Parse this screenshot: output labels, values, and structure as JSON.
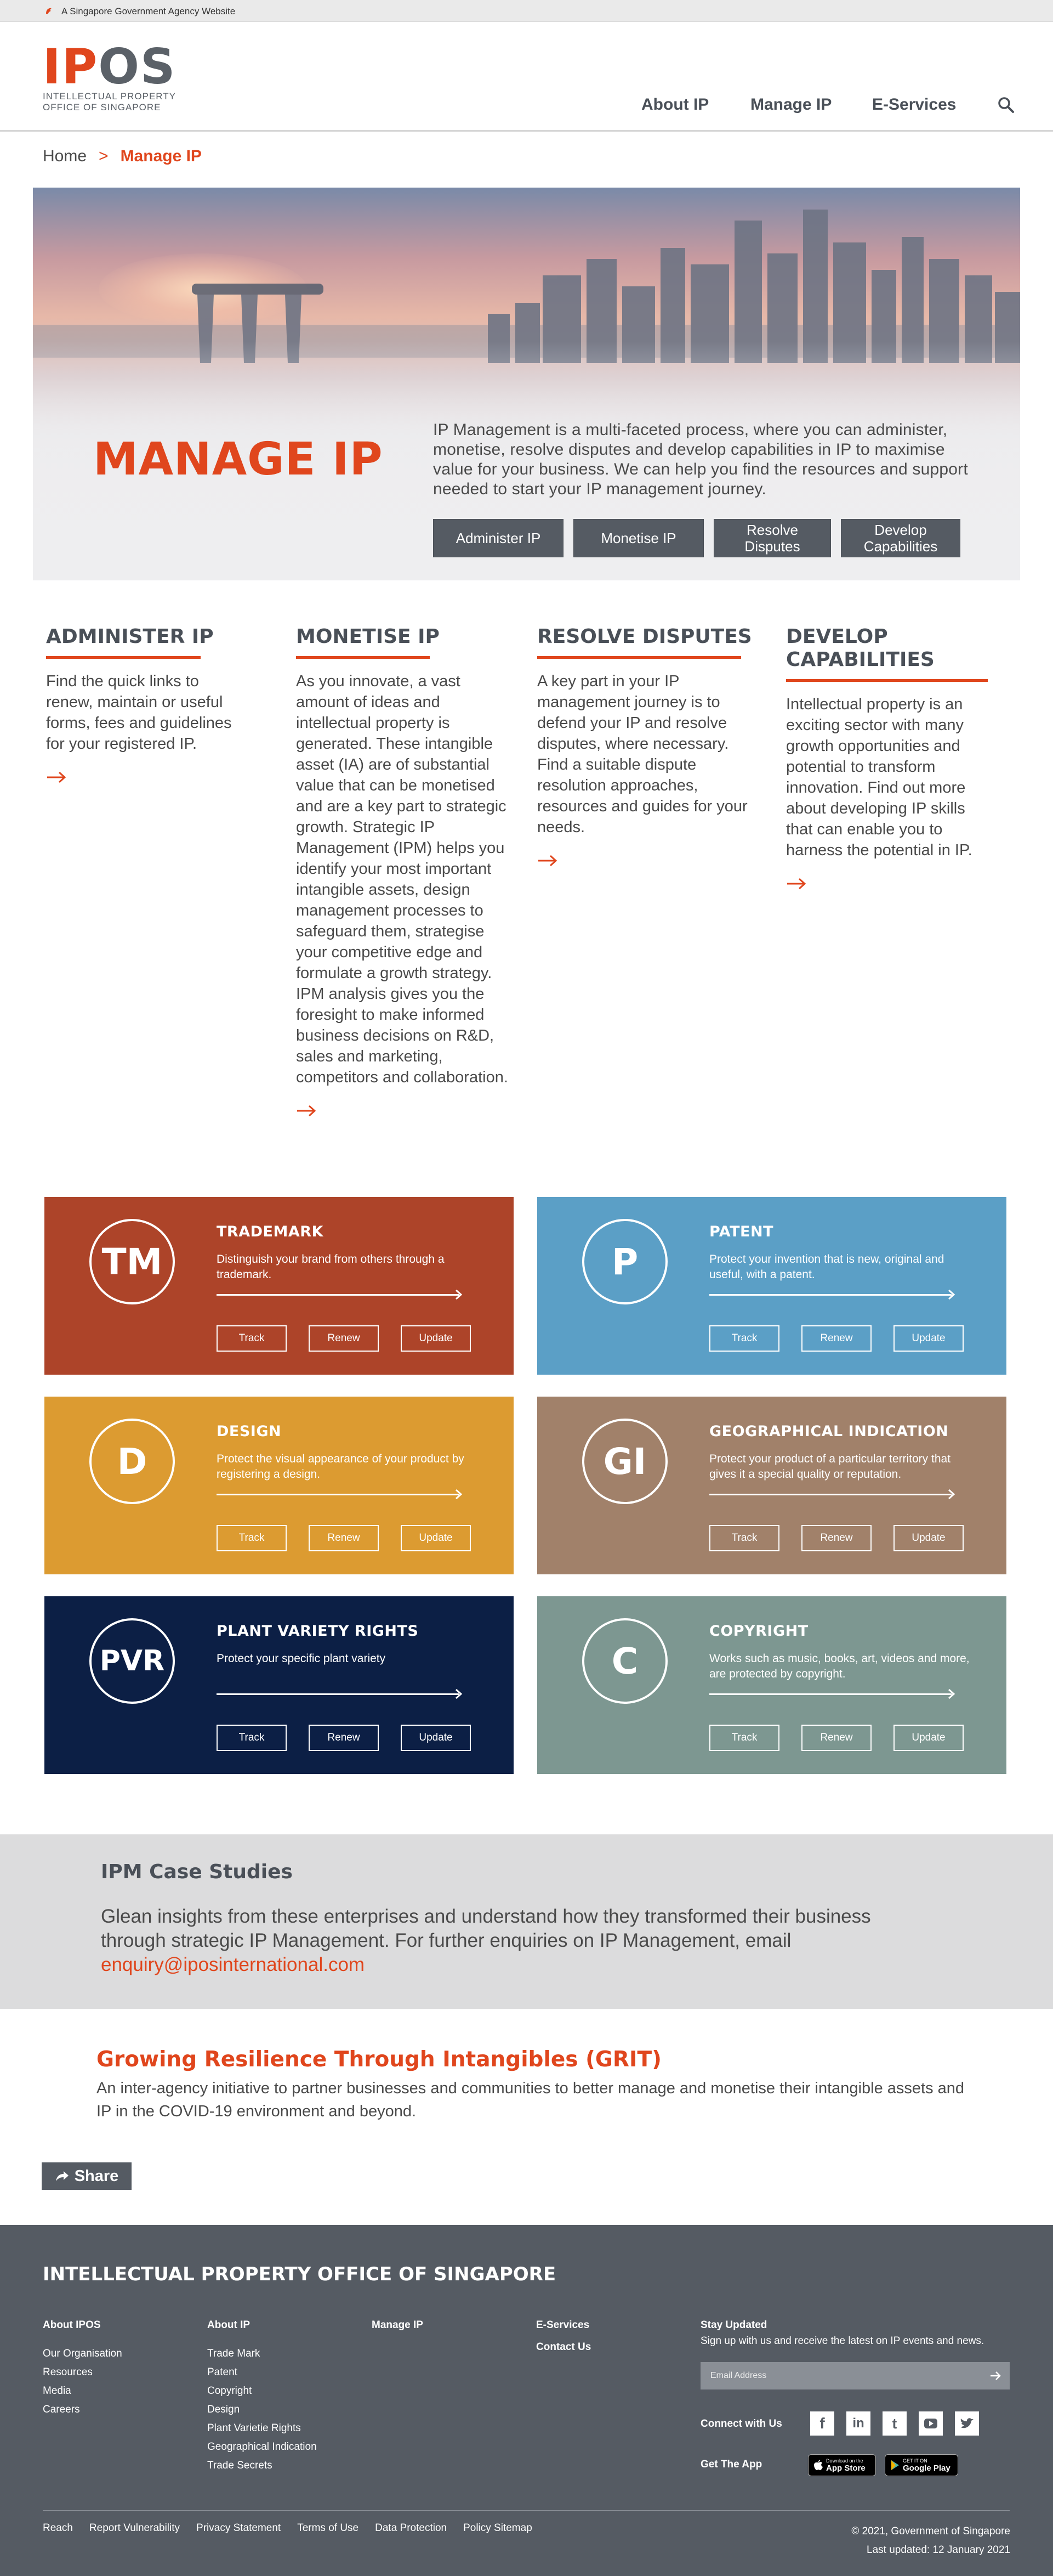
{
  "gov_banner": {
    "text": "A Singapore Government Agency Website"
  },
  "logo": {
    "ip": "IP",
    "os": "OS",
    "line1": "INTELLECTUAL PROPERTY",
    "line2": "OFFICE OF SINGAPORE"
  },
  "nav": {
    "items": [
      "About IP",
      "Manage IP",
      "E-Services"
    ],
    "search_icon": "search-icon"
  },
  "breadcrumb": {
    "home": "Home",
    "separator": ">",
    "current": "Manage IP"
  },
  "hero": {
    "title": "MANAGE IP",
    "description": "IP Management is a multi-faceted process, where you can administer, monetise, resolve disputes and develop capabilities in IP to maximise value for your business. We can help you find the resources and support needed to start your IP management journey.",
    "buttons": [
      "Administer IP",
      "Monetise IP",
      "Resolve Disputes",
      "Develop Capabilities"
    ]
  },
  "sections": [
    {
      "title": "ADMINISTER IP",
      "text": "Find the quick links to renew, maintain or useful forms, fees and guidelines for your registered IP."
    },
    {
      "title": "MONETISE IP",
      "text": "As you innovate, a vast amount of ideas and intellectual property is generated. These intangible asset (IA) are of substantial value that can be monetised and are a key part to strategic growth. Strategic IP Management (IPM) helps you identify your most important intangible assets, design management processes to safeguard them, strategise your competitive edge and formulate a growth strategy. IPM analysis gives you the foresight to make informed business decisions on R&D, sales and marketing, competitors and collaboration."
    },
    {
      "title": "RESOLVE DISPUTES",
      "text": "A key part in your IP management journey is to defend your IP and resolve disputes, where necessary. Find a suitable dispute resolution approaches, resources and guides for your needs."
    },
    {
      "title": "DEVELOP CAPABILITIES",
      "text": "Intellectual property is an exciting sector with many growth opportunities and potential  to transform innovation. Find out more about developing IP skills that can enable you to harness the potential in IP."
    }
  ],
  "ip_types": [
    {
      "abbr": "TM",
      "name": "TRADEMARK",
      "desc": "Distinguish your brand from others through a trademark.",
      "color": "#ad4429"
    },
    {
      "abbr": "P",
      "name": "PATENT",
      "desc": "Protect your invention that is new, original and useful, with a patent.",
      "color": "#5b9fc6"
    },
    {
      "abbr": "D",
      "name": "DESIGN",
      "desc": "Protect the visual appearance of your product by registering a design.",
      "color": "#dc9b31"
    },
    {
      "abbr": "GI",
      "name": "GEOGRAPHICAL INDICATION",
      "desc": "Protect your product of a particular territory that gives it a special quality or reputation.",
      "color": "#a1816a"
    },
    {
      "abbr": "PVR",
      "name": "PLANT VARIETY RIGHTS",
      "desc": "Protect your specific plant variety",
      "color": "#0c1f45"
    },
    {
      "abbr": "C",
      "name": "COPYRIGHT",
      "desc": "Works such as music, books, art, videos and more, are protected by copyright.",
      "color": "#7d9791"
    }
  ],
  "card_actions": [
    "Track",
    "Renew",
    "Update"
  ],
  "case_studies": {
    "title": "IPM Case Studies",
    "text": "Glean insights from these enterprises and understand how they transformed their business through strategic IP Management. For further enquiries on IP Management, email ",
    "email": "enquiry@iposinternational.com"
  },
  "grit": {
    "title": "Growing Resilience Through Intangibles (GRIT)",
    "text": "An inter-agency initiative to partner businesses and communities to better manage and monetise their intangible assets and IP in the COVID-19 environment and beyond."
  },
  "share": {
    "label": "Share"
  },
  "footer": {
    "title": "INTELLECTUAL PROPERTY OFFICE OF SINGAPORE",
    "about_ipos": {
      "heading": "About IPOS",
      "items": [
        "Our Organisation",
        "Resources",
        "Media",
        "Careers"
      ]
    },
    "about_ip": {
      "heading": "About IP",
      "items": [
        "Trade Mark",
        "Patent",
        "Copyright",
        "Design",
        "Plant Varietie Rights",
        "Geographical Indication",
        "Trade Secrets"
      ]
    },
    "manage_ip": {
      "heading": "Manage IP"
    },
    "eservices": {
      "heading": "E-Services",
      "contact": "Contact Us"
    },
    "stay": {
      "heading": "Stay Updated",
      "text": "Sign up with us and receive the latest on IP events and news.",
      "placeholder": "Email Address"
    },
    "connect": "Connect with Us",
    "social_icons": [
      "facebook-icon",
      "linkedin-icon",
      "tumblr-icon",
      "youtube-icon",
      "twitter-icon"
    ],
    "get_app": "Get The App",
    "app_store": {
      "small": "Download on the",
      "big": "App Store"
    },
    "google_play": {
      "small": "GET IT ON",
      "big": "Google Play"
    },
    "bottom_links": [
      "Reach",
      "Report Vulnerability",
      "Privacy Statement",
      "Terms of Use",
      "Data Protection",
      "Policy Sitemap"
    ],
    "copyright": "© 2021, Government of Singapore",
    "updated": "Last updated: 12 January 2021"
  }
}
